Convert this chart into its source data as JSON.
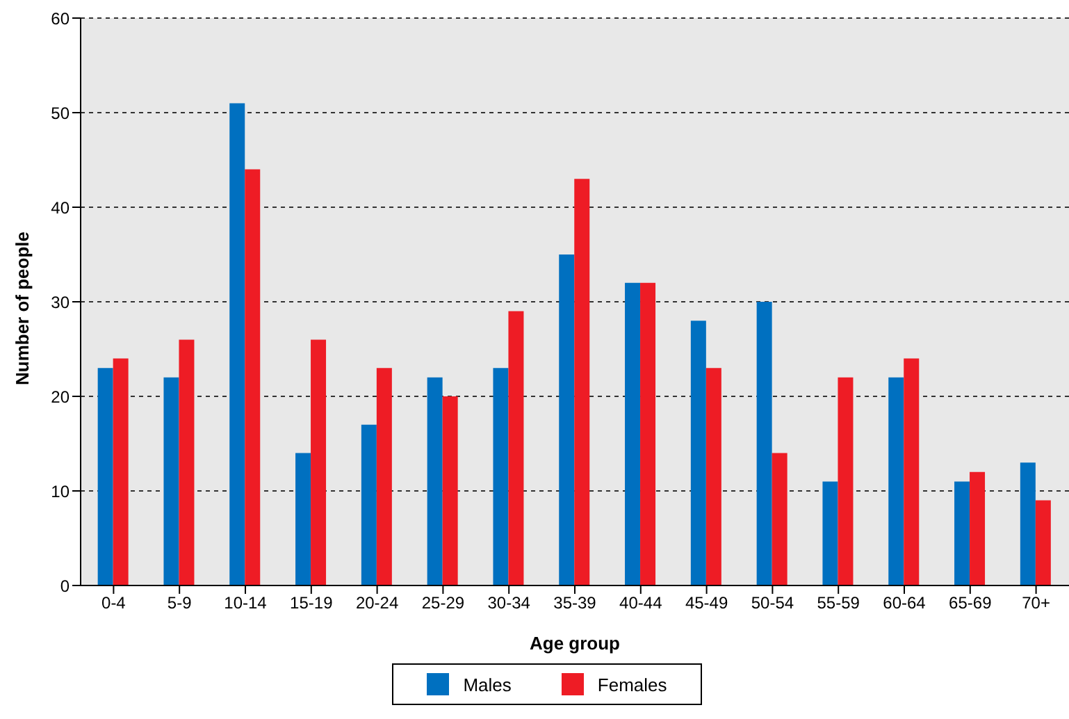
{
  "chart_data": {
    "type": "bar",
    "xlabel": "Age group",
    "ylabel": "Number of people",
    "categories": [
      "0-4",
      "5-9",
      "10-14",
      "15-19",
      "20-24",
      "25-29",
      "30-34",
      "35-39",
      "40-44",
      "45-49",
      "50-54",
      "55-59",
      "60-64",
      "65-69",
      "70+"
    ],
    "series": [
      {
        "name": "Males",
        "color": "#0070c0",
        "values": [
          23,
          22,
          51,
          14,
          17,
          22,
          23,
          35,
          32,
          28,
          30,
          11,
          22,
          11,
          13
        ]
      },
      {
        "name": "Females",
        "color": "#ee1c25",
        "values": [
          24,
          26,
          44,
          26,
          23,
          20,
          29,
          43,
          32,
          23,
          14,
          22,
          24,
          12,
          9
        ]
      }
    ],
    "ylim": [
      0,
      60
    ],
    "yticks": [
      0,
      10,
      20,
      30,
      40,
      50,
      60
    ],
    "grid": "y",
    "legend": "bottom"
  }
}
